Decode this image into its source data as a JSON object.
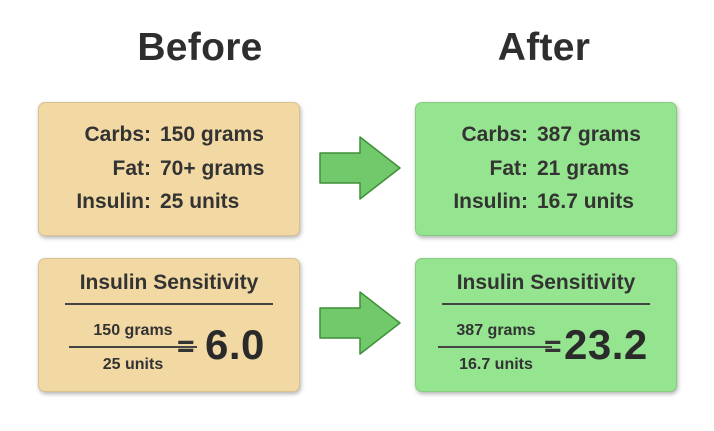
{
  "before": {
    "title": "Before",
    "carbs_label": "Carbs:",
    "carbs_value": "150 grams",
    "fat_label": "Fat:",
    "fat_value": "70+ grams",
    "insulin_label": "Insulin:",
    "insulin_value": "25 units",
    "sensitivity_title": "Insulin Sensitivity",
    "numerator": "150 grams",
    "denominator": "25 units",
    "equals": "=",
    "result": "6.0"
  },
  "after": {
    "title": "After",
    "carbs_label": "Carbs:",
    "carbs_value": "387 grams",
    "fat_label": "Fat:",
    "fat_value": "21 grams",
    "insulin_label": "Insulin:",
    "insulin_value": "16.7 units",
    "sensitivity_title": "Insulin Sensitivity",
    "numerator": "387 grams",
    "denominator": "16.7 units",
    "equals": "=",
    "result": "23.2"
  },
  "colors": {
    "before_card": "#f2d9a3",
    "after_card": "#95e48f",
    "arrow": "#71c96b"
  },
  "icons": {
    "transition": "right-arrow-icon"
  }
}
